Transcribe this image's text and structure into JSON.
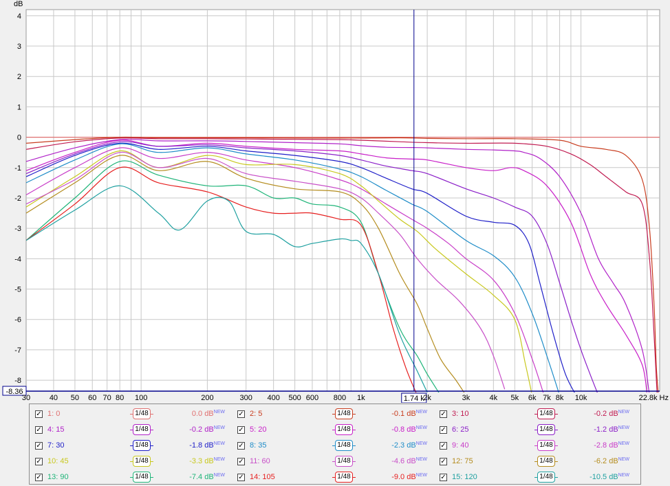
{
  "chart_data": {
    "type": "line",
    "y_unit": "dB",
    "x_unit": "Hz",
    "x_scale": "log",
    "xlim": [
      30,
      22800
    ],
    "ylim": [
      -8.36,
      4.2
    ],
    "grid": true,
    "y_ticks": [
      "4",
      "3",
      "2",
      "1",
      "0",
      "-1",
      "-2",
      "-3",
      "-4",
      "-5",
      "-6",
      "-7",
      "-8"
    ],
    "y_min_label": "-8.36",
    "x_ticks": [
      {
        "v": 30,
        "label": "30"
      },
      {
        "v": 40,
        "label": "40"
      },
      {
        "v": 50,
        "label": "50"
      },
      {
        "v": 60,
        "label": "60"
      },
      {
        "v": 70,
        "label": "70"
      },
      {
        "v": 80,
        "label": "80"
      },
      {
        "v": 100,
        "label": "100"
      },
      {
        "v": 200,
        "label": "200"
      },
      {
        "v": 300,
        "label": "300"
      },
      {
        "v": 400,
        "label": "400"
      },
      {
        "v": 500,
        "label": "500"
      },
      {
        "v": 600,
        "label": "600"
      },
      {
        "v": 800,
        "label": "800"
      },
      {
        "v": 1000,
        "label": "1k"
      },
      {
        "v": 2000,
        "label": "2k"
      },
      {
        "v": 3000,
        "label": "3k"
      },
      {
        "v": 4000,
        "label": "4k"
      },
      {
        "v": 5000,
        "label": "5k"
      },
      {
        "v": 6000,
        "label": "6k"
      },
      {
        "v": 7000,
        "label": "7k"
      },
      {
        "v": 8000,
        "label": "8k"
      },
      {
        "v": 10000,
        "label": "10k"
      },
      {
        "v": 22800,
        "label": "22.8k Hz"
      }
    ],
    "cursor": {
      "x": 1740,
      "label": "1.74 k"
    },
    "series": [
      {
        "name": "1: 0",
        "color": "#e07070",
        "value_label": "0.0 dB",
        "x": [
          30,
          80,
          200,
          500,
          1000,
          2000,
          5000,
          10000,
          15000,
          19000,
          21000,
          22000,
          22800
        ],
        "y": [
          0,
          0,
          0,
          0,
          0,
          0,
          0,
          0,
          0,
          0,
          0,
          0,
          0
        ]
      },
      {
        "name": "2: 5",
        "color": "#c83c1e",
        "value_label": "-0.1 dB",
        "x": [
          30,
          50,
          80,
          120,
          200,
          300,
          500,
          800,
          1000,
          1500,
          2000,
          3000,
          5000,
          8000,
          10000,
          13000,
          16000,
          19000,
          20500,
          21500,
          22000,
          22500
        ],
        "y": [
          -0.2,
          -0.08,
          0,
          -0.02,
          -0.02,
          -0.02,
          -0.03,
          -0.03,
          -0.03,
          -0.02,
          -0.04,
          -0.05,
          -0.05,
          -0.1,
          -0.3,
          -0.4,
          -0.6,
          -1.4,
          -3.0,
          -5.5,
          -7.5,
          -8.5
        ]
      },
      {
        "name": "3: 10",
        "color": "#c01a50",
        "value_label": "-0.2 dB",
        "x": [
          30,
          50,
          80,
          120,
          200,
          300,
          500,
          800,
          1000,
          1500,
          2000,
          3000,
          5000,
          7000,
          9000,
          11000,
          13000,
          16000,
          19000,
          20500,
          21500,
          22200
        ],
        "y": [
          -0.4,
          -0.15,
          -0.03,
          -0.05,
          -0.05,
          -0.06,
          -0.07,
          -0.08,
          -0.1,
          -0.15,
          -0.18,
          -0.2,
          -0.2,
          -0.3,
          -0.55,
          -0.9,
          -1.3,
          -1.8,
          -2.2,
          -4.0,
          -6.5,
          -8.5
        ]
      },
      {
        "name": "4: 15",
        "color": "#b020c8",
        "value_label": "-0.2 dB",
        "x": [
          30,
          50,
          80,
          120,
          200,
          300,
          500,
          800,
          1000,
          1300,
          1700,
          2000,
          3000,
          4000,
          5000,
          5500,
          6500,
          8000,
          10000,
          12000,
          14000,
          16000,
          19000,
          20500
        ],
        "y": [
          -0.8,
          -0.35,
          -0.08,
          -0.12,
          -0.12,
          -0.14,
          -0.18,
          -0.22,
          -0.28,
          -0.33,
          -0.34,
          -0.35,
          -0.4,
          -0.42,
          -0.45,
          -0.5,
          -0.7,
          -1.3,
          -2.5,
          -4.0,
          -4.8,
          -5.5,
          -7.0,
          -8.5
        ]
      },
      {
        "name": "5: 20",
        "color": "#c81ec8",
        "value_label": "-0.8 dB",
        "x": [
          30,
          50,
          80,
          120,
          200,
          300,
          500,
          800,
          1000,
          1300,
          1700,
          2000,
          3000,
          4000,
          4800,
          5500,
          7000,
          9000,
          11000,
          13000,
          16000,
          19000,
          20000
        ],
        "y": [
          -1.1,
          -0.5,
          -0.1,
          -0.3,
          -0.2,
          -0.3,
          -0.4,
          -0.45,
          -0.55,
          -0.68,
          -0.72,
          -0.75,
          -1.0,
          -1.1,
          -1.0,
          -1.1,
          -1.6,
          -2.8,
          -4.5,
          -5.5,
          -6.5,
          -7.5,
          -8.5
        ]
      },
      {
        "name": "6: 25",
        "color": "#8a1ec8",
        "value_label": "-1.2 dB",
        "x": [
          30,
          50,
          80,
          120,
          200,
          300,
          500,
          800,
          1000,
          1300,
          1700,
          2000,
          3000,
          4000,
          5000,
          6000,
          7000,
          8000,
          9000,
          10000,
          11000,
          12000
        ],
        "y": [
          -1.2,
          -0.55,
          -0.15,
          -0.3,
          -0.25,
          -0.35,
          -0.45,
          -0.6,
          -0.75,
          -0.95,
          -1.1,
          -1.2,
          -1.7,
          -2.0,
          -2.3,
          -2.6,
          -3.5,
          -4.8,
          -6.0,
          -7.0,
          -7.8,
          -8.5
        ]
      },
      {
        "name": "7: 30",
        "color": "#1e1ec8",
        "value_label": "-1.8 dB",
        "x": [
          30,
          50,
          80,
          120,
          200,
          300,
          500,
          800,
          1000,
          1300,
          1700,
          2000,
          3000,
          4000,
          5000,
          5800,
          6500,
          7500,
          8500,
          9500
        ],
        "y": [
          -1.3,
          -0.6,
          -0.2,
          -0.4,
          -0.3,
          -0.45,
          -0.6,
          -0.8,
          -1.0,
          -1.35,
          -1.7,
          -1.85,
          -2.6,
          -2.8,
          -2.9,
          -3.5,
          -4.8,
          -6.5,
          -7.8,
          -8.5
        ]
      },
      {
        "name": "8: 35",
        "color": "#1e8cc8",
        "value_label": "-2.3 dB",
        "x": [
          30,
          50,
          80,
          120,
          200,
          300,
          500,
          800,
          1000,
          1300,
          1700,
          2000,
          3000,
          4000,
          5000,
          6000,
          7000,
          8000
        ],
        "y": [
          -1.5,
          -0.75,
          -0.22,
          -0.5,
          -0.35,
          -0.55,
          -0.75,
          -1.05,
          -1.3,
          -1.75,
          -2.2,
          -2.45,
          -3.4,
          -3.9,
          -4.6,
          -5.8,
          -7.2,
          -8.5
        ]
      },
      {
        "name": "9: 40",
        "color": "#c83cc8",
        "value_label": "-2.8 dB",
        "x": [
          30,
          50,
          80,
          120,
          200,
          300,
          500,
          800,
          1000,
          1300,
          1700,
          2000,
          2500,
          3000,
          4000,
          5000,
          6000,
          6800
        ],
        "y": [
          -1.9,
          -1.0,
          -0.35,
          -0.7,
          -0.5,
          -0.75,
          -1.0,
          -1.4,
          -1.7,
          -2.2,
          -2.7,
          -3.0,
          -3.5,
          -4.0,
          -4.7,
          -5.8,
          -7.3,
          -8.5
        ]
      },
      {
        "name": "10: 45",
        "color": "#c8c81e",
        "value_label": "-3.3 dB",
        "x": [
          30,
          50,
          80,
          120,
          200,
          300,
          500,
          800,
          1000,
          1200,
          1500,
          1800,
          2200,
          3000,
          4000,
          5000,
          5600,
          6000
        ],
        "y": [
          -2.3,
          -1.3,
          -0.45,
          -1.0,
          -0.6,
          -0.9,
          -0.9,
          -1.2,
          -1.6,
          -2.1,
          -2.7,
          -3.1,
          -3.7,
          -4.5,
          -5.2,
          -6.0,
          -7.5,
          -8.5
        ]
      },
      {
        "name": "11: 60",
        "color": "#c84fc8",
        "value_label": "-4.6 dB",
        "x": [
          30,
          50,
          80,
          120,
          200,
          300,
          500,
          800,
          1000,
          1200,
          1500,
          1800,
          2200,
          2800,
          3500,
          4000,
          4500
        ],
        "y": [
          -2.2,
          -1.4,
          -0.5,
          -1.0,
          -0.7,
          -1.2,
          -1.45,
          -1.7,
          -2.0,
          -2.5,
          -3.2,
          -4.0,
          -4.7,
          -5.4,
          -6.3,
          -7.2,
          -8.3
        ]
      },
      {
        "name": "12: 75",
        "color": "#b48c1e",
        "value_label": "-6.2 dB",
        "x": [
          30,
          50,
          80,
          120,
          200,
          300,
          500,
          800,
          1000,
          1200,
          1500,
          1800,
          2000,
          2300,
          2700,
          3000
        ],
        "y": [
          -2.5,
          -1.5,
          -0.6,
          -1.1,
          -0.8,
          -1.35,
          -1.7,
          -1.8,
          -2.2,
          -3.0,
          -4.5,
          -5.5,
          -6.3,
          -7.3,
          -8.0,
          -8.5
        ]
      },
      {
        "name": "13: 90",
        "color": "#1eb478",
        "value_label": "-7.4 dB",
        "x": [
          30,
          50,
          80,
          120,
          200,
          300,
          400,
          500,
          600,
          800,
          1000,
          1200,
          1500,
          1800,
          2000,
          2300
        ],
        "y": [
          -3.4,
          -2.0,
          -0.8,
          -1.25,
          -1.6,
          -1.6,
          -2.0,
          -2.0,
          -2.2,
          -2.3,
          -2.8,
          -4.5,
          -6.3,
          -7.2,
          -7.8,
          -8.5
        ]
      },
      {
        "name": "14: 105",
        "color": "#e61e1e",
        "value_label": "-9.0 dB",
        "x": [
          30,
          50,
          80,
          120,
          200,
          300,
          400,
          500,
          600,
          800,
          1000,
          1200,
          1400,
          1600,
          1800
        ],
        "y": [
          -3.4,
          -2.2,
          -1.0,
          -1.5,
          -1.8,
          -2.3,
          -2.5,
          -2.5,
          -2.5,
          -2.7,
          -2.9,
          -4.5,
          -6.3,
          -7.6,
          -8.5
        ]
      },
      {
        "name": "15: 120",
        "color": "#1ea0a0",
        "value_label": "-10.5 dB",
        "x": [
          30,
          50,
          80,
          120,
          150,
          200,
          250,
          300,
          400,
          500,
          600,
          800,
          900,
          1000,
          1200,
          1500,
          1800,
          2000
        ],
        "y": [
          -3.4,
          -2.4,
          -1.6,
          -2.5,
          -3.05,
          -2.1,
          -2.1,
          -3.1,
          -3.2,
          -3.6,
          -3.5,
          -3.35,
          -3.4,
          -3.5,
          -4.5,
          -6.5,
          -7.7,
          -8.4
        ]
      }
    ]
  },
  "legend_items": [
    {
      "label": "1: 0",
      "value": "0.0 dB",
      "badge": "NEW",
      "color": "#e07070",
      "checked": true,
      "smooth": "1/48"
    },
    {
      "label": "2: 5",
      "value": "-0.1 dB",
      "badge": "NEW",
      "color": "#c83c1e",
      "checked": true,
      "smooth": "1/48"
    },
    {
      "label": "3: 10",
      "value": "-0.2 dB",
      "badge": "NEW",
      "color": "#c01a50",
      "checked": true,
      "smooth": "1/48"
    },
    {
      "label": "4: 15",
      "value": "-0.2 dB",
      "badge": "NEW",
      "color": "#b020c8",
      "checked": true,
      "smooth": "1/48"
    },
    {
      "label": "5: 20",
      "value": "-0.8 dB",
      "badge": "NEW",
      "color": "#c81ec8",
      "checked": true,
      "smooth": "1/48"
    },
    {
      "label": "6: 25",
      "value": "-1.2 dB",
      "badge": "NEW",
      "color": "#8a1ec8",
      "checked": true,
      "smooth": "1/48"
    },
    {
      "label": "7: 30",
      "value": "-1.8 dB",
      "badge": "NEW",
      "color": "#1e1ec8",
      "checked": true,
      "smooth": "1/48"
    },
    {
      "label": "8: 35",
      "value": "-2.3 dB",
      "badge": "NEW",
      "color": "#1e8cc8",
      "checked": true,
      "smooth": "1/48"
    },
    {
      "label": "9: 40",
      "value": "-2.8 dB",
      "badge": "NEW",
      "color": "#c83cc8",
      "checked": true,
      "smooth": "1/48"
    },
    {
      "label": "10: 45",
      "value": "-3.3 dB",
      "badge": "NEW",
      "color": "#c8c81e",
      "checked": true,
      "smooth": "1/48"
    },
    {
      "label": "11: 60",
      "value": "-4.6 dB",
      "badge": "NEW",
      "color": "#c84fc8",
      "checked": true,
      "smooth": "1/48"
    },
    {
      "label": "12: 75",
      "value": "-6.2 dB",
      "badge": "NEW",
      "color": "#b48c1e",
      "checked": true,
      "smooth": "1/48"
    },
    {
      "label": "13: 90",
      "value": "-7.4 dB",
      "badge": "NEW",
      "color": "#1eb478",
      "checked": true,
      "smooth": "1/48"
    },
    {
      "label": "14: 105",
      "value": "-9.0 dB",
      "badge": "NEW",
      "color": "#e61e1e",
      "checked": true,
      "smooth": "1/48"
    },
    {
      "label": "15: 120",
      "value": "-10.5 dB",
      "badge": "NEW",
      "color": "#1ea0a0",
      "checked": true,
      "smooth": "1/48"
    }
  ],
  "colors": {
    "plot_bg": "#ffffff",
    "grid": "#c8c8c8",
    "axis": "#000000",
    "cursor": "#00008c",
    "page_bg": "#f0f0f0"
  }
}
